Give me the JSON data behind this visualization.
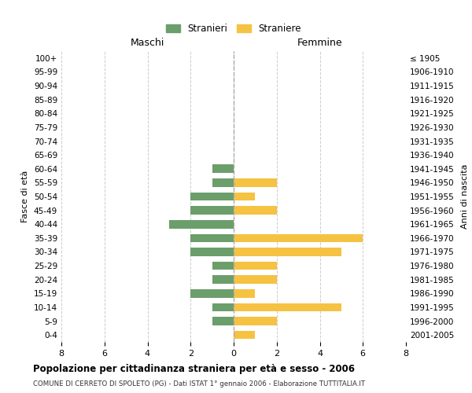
{
  "age_groups": [
    "100+",
    "95-99",
    "90-94",
    "85-89",
    "80-84",
    "75-79",
    "70-74",
    "65-69",
    "60-64",
    "55-59",
    "50-54",
    "45-49",
    "40-44",
    "35-39",
    "30-34",
    "25-29",
    "20-24",
    "15-19",
    "10-14",
    "5-9",
    "0-4"
  ],
  "birth_years": [
    "≤ 1905",
    "1906-1910",
    "1911-1915",
    "1916-1920",
    "1921-1925",
    "1926-1930",
    "1931-1935",
    "1936-1940",
    "1941-1945",
    "1946-1950",
    "1951-1955",
    "1956-1960",
    "1961-1965",
    "1966-1970",
    "1971-1975",
    "1976-1980",
    "1981-1985",
    "1986-1990",
    "1991-1995",
    "1996-2000",
    "2001-2005"
  ],
  "maschi": [
    0,
    0,
    0,
    0,
    0,
    0,
    0,
    0,
    1,
    1,
    2,
    2,
    3,
    2,
    2,
    1,
    1,
    2,
    1,
    1,
    0
  ],
  "femmine": [
    0,
    0,
    0,
    0,
    0,
    0,
    0,
    0,
    0,
    2,
    1,
    2,
    0,
    6,
    5,
    2,
    2,
    1,
    5,
    2,
    1
  ],
  "color_maschi": "#6b9e6b",
  "color_femmine": "#f5c242",
  "title": "Popolazione per cittadinanza straniera per età e sesso - 2006",
  "subtitle": "COMUNE DI CERRETO DI SPOLETO (PG) - Dati ISTAT 1° gennaio 2006 - Elaborazione TUTTITALIA.IT",
  "xlabel_left": "Maschi",
  "xlabel_right": "Femmine",
  "ylabel_left": "Fasce di età",
  "ylabel_right": "Anni di nascita",
  "legend_maschi": "Stranieri",
  "legend_femmine": "Straniere",
  "xlim": 8,
  "background_color": "#ffffff",
  "grid_color": "#cccccc"
}
